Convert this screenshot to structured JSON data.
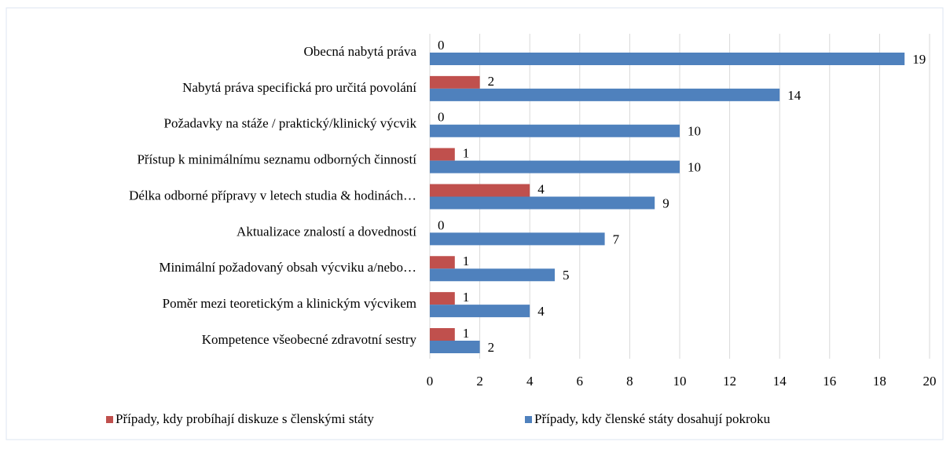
{
  "chart_data": {
    "type": "bar",
    "orientation": "horizontal",
    "categories": [
      "Obecná nabytá práva",
      "Nabytá práva specifická pro určitá povolání",
      "Požadavky na stáže / praktický/klinický výcvik",
      "Přístup k minimálnímu seznamu odborných činností",
      "Délka odborné přípravy v letech studia & hodinách…",
      "Aktualizace znalostí a dovedností",
      "Minimální požadovaný obsah výcviku a/nebo…",
      "Poměr mezi teoretickým a klinickým výcvikem",
      "Kompetence všeobecné zdravotní sestry"
    ],
    "series": [
      {
        "name": "Případy, kdy probíhají diskuze s členskými státy",
        "color": "#c0504d",
        "values": [
          0,
          2,
          0,
          1,
          4,
          0,
          1,
          1,
          1
        ]
      },
      {
        "name": "Případy, kdy členské státy dosahují pokroku",
        "color": "#4f81bd",
        "values": [
          19,
          14,
          10,
          10,
          9,
          7,
          5,
          4,
          2
        ]
      }
    ],
    "xlim": [
      0,
      20
    ],
    "xticks": [
      0,
      2,
      4,
      6,
      8,
      10,
      12,
      14,
      16,
      18,
      20
    ],
    "grid": true,
    "legend": "bottom"
  }
}
